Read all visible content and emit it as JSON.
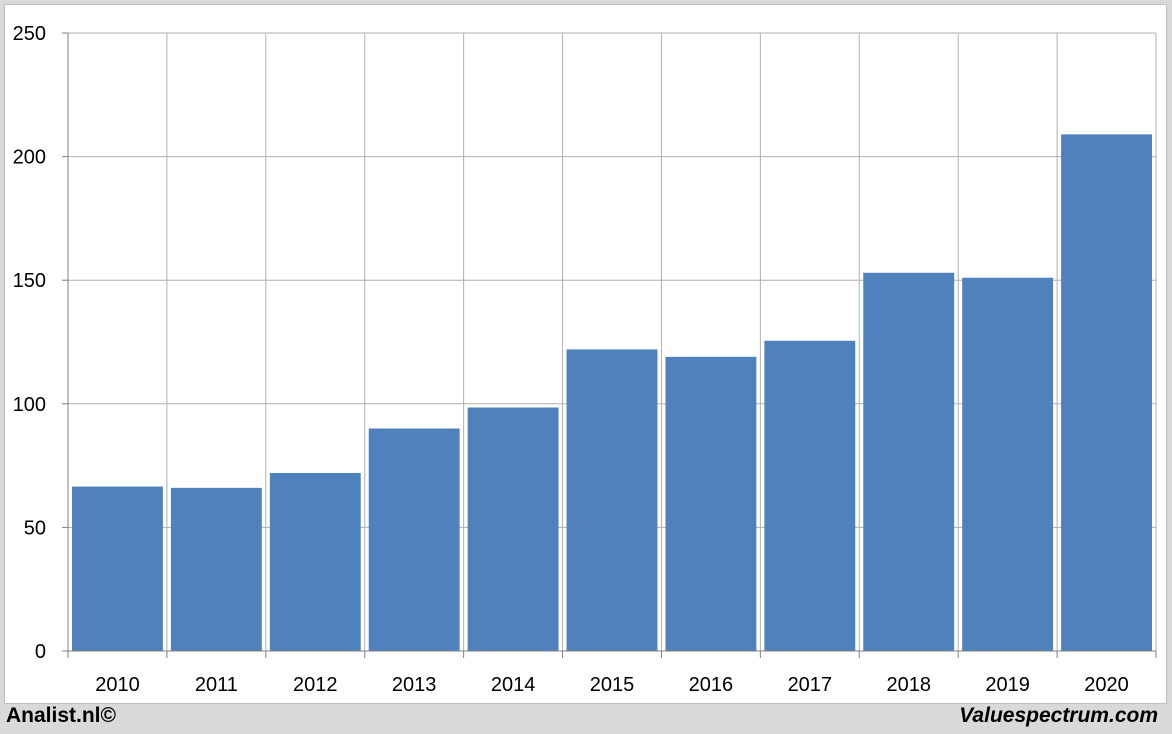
{
  "chart_data": {
    "type": "bar",
    "categories": [
      "2010",
      "2011",
      "2012",
      "2013",
      "2014",
      "2015",
      "2016",
      "2017",
      "2018",
      "2019",
      "2020"
    ],
    "values": [
      66.5,
      66,
      72,
      90,
      98.5,
      122,
      119,
      125.5,
      153,
      151,
      209
    ],
    "ylim": [
      0,
      250
    ],
    "yticks": [
      0,
      50,
      100,
      150,
      200,
      250
    ],
    "grid": true,
    "bar_color": "#4f81bd",
    "grid_color": "#b0b0b0"
  },
  "footer": {
    "left": "Analist.nl©",
    "right": "Valuespectrum.com"
  }
}
